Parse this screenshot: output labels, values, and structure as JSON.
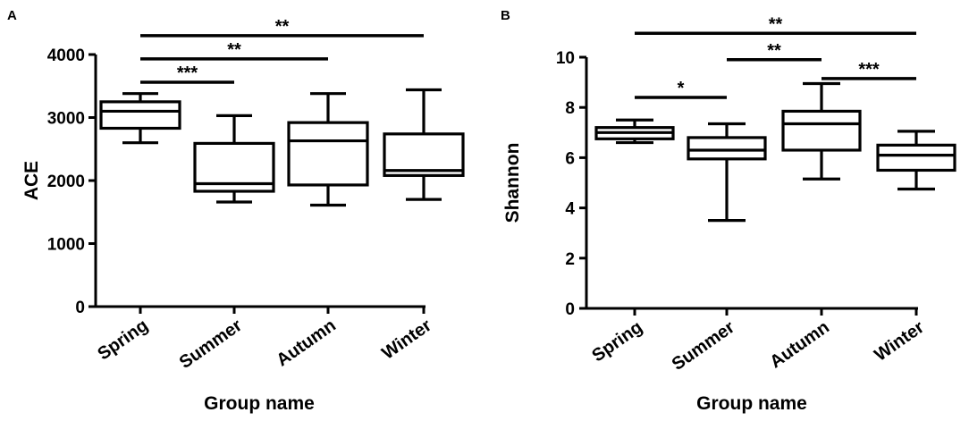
{
  "chart_data": [
    {
      "panel": "A",
      "type": "box",
      "title": "",
      "xlabel": "Group name",
      "ylabel": "ACE",
      "ylim": [
        0,
        4000
      ],
      "yticks": [
        0,
        1000,
        2000,
        3000,
        4000
      ],
      "categories": [
        "Spring",
        "Summer",
        "Autumn",
        "Winter"
      ],
      "boxes": [
        {
          "category": "Spring",
          "min": 2600,
          "q1": 2830,
          "median": 3100,
          "q3": 3250,
          "max": 3380
        },
        {
          "category": "Summer",
          "min": 1660,
          "q1": 1830,
          "median": 1950,
          "q3": 2590,
          "max": 3030
        },
        {
          "category": "Autumn",
          "min": 1610,
          "q1": 1930,
          "median": 2630,
          "q3": 2920,
          "max": 3380
        },
        {
          "category": "Winter",
          "min": 1700,
          "q1": 2080,
          "median": 2160,
          "q3": 2740,
          "max": 3440
        }
      ],
      "significance": [
        {
          "from": "Spring",
          "to": "Winter",
          "label": "**",
          "y": 4300
        },
        {
          "from": "Spring",
          "to": "Autumn",
          "label": "**",
          "y": 3930
        },
        {
          "from": "Spring",
          "to": "Summer",
          "label": "***",
          "y": 3560
        }
      ],
      "grid": false
    },
    {
      "panel": "B",
      "type": "box",
      "title": "",
      "xlabel": "Group name",
      "ylabel": "Shannon",
      "ylim": [
        0,
        10
      ],
      "yticks": [
        0,
        2,
        4,
        6,
        8,
        10
      ],
      "categories": [
        "Spring",
        "Summer",
        "Autumn",
        "Winter"
      ],
      "boxes": [
        {
          "category": "Spring",
          "min": 6.6,
          "q1": 6.75,
          "median": 7.0,
          "q3": 7.2,
          "max": 7.5
        },
        {
          "category": "Summer",
          "min": 3.5,
          "q1": 5.95,
          "median": 6.3,
          "q3": 6.8,
          "max": 7.35
        },
        {
          "category": "Autumn",
          "min": 5.15,
          "q1": 6.3,
          "median": 7.35,
          "q3": 7.85,
          "max": 8.95
        },
        {
          "category": "Winter",
          "min": 4.75,
          "q1": 5.5,
          "median": 6.1,
          "q3": 6.5,
          "max": 7.05
        }
      ],
      "significance": [
        {
          "from": "Spring",
          "to": "Winter",
          "label": "**",
          "y": 10.95
        },
        {
          "from": "Summer",
          "to": "Autumn",
          "label": "**",
          "y": 9.9
        },
        {
          "from": "Autumn",
          "to": "Winter",
          "label": "***",
          "y": 9.15
        },
        {
          "from": "Spring",
          "to": "Summer",
          "label": "*",
          "y": 8.4
        }
      ],
      "grid": false
    }
  ]
}
